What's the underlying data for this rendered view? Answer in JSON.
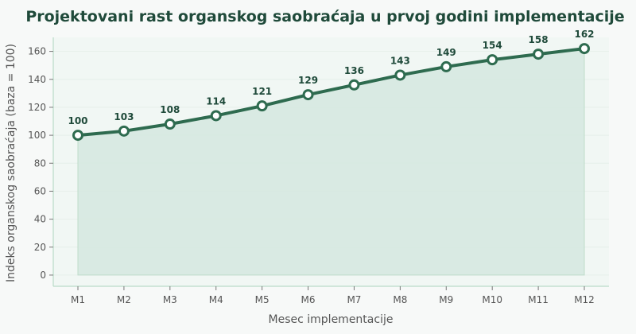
{
  "chart_data": {
    "type": "area",
    "title": "Projektovani rast organskog saobraćaja u prvoj godini implementacije",
    "xlabel": "Mesec implementacije",
    "ylabel": "Indeks organskog saobraćaja (baza = 100)",
    "categories": [
      "M1",
      "M2",
      "M3",
      "M4",
      "M5",
      "M6",
      "M7",
      "M8",
      "M9",
      "M10",
      "M11",
      "M12"
    ],
    "series": [
      {
        "values": [
          100,
          103,
          108,
          114,
          121,
          129,
          136,
          143,
          149,
          154,
          158,
          162
        ]
      }
    ],
    "data_labels": [
      "100",
      "103",
      "108",
      "114",
      "121",
      "129",
      "136",
      "143",
      "149",
      "154",
      "158",
      "162"
    ],
    "ylim": [
      -8,
      170
    ],
    "yticks": [
      0,
      20,
      40,
      60,
      80,
      100,
      120,
      140,
      160
    ],
    "ytick_labels": [
      "0",
      "20",
      "40",
      "60",
      "80",
      "100",
      "120",
      "140",
      "160"
    ],
    "grid": true,
    "colors": {
      "line": "#2e6b4f",
      "fill": "#d5e8df",
      "marker_fill": "#ffffff",
      "plot_bg": "#f1f7f4",
      "axis": "#b9dcc8",
      "grid": "#e6efea",
      "title": "#1f4a3a"
    }
  }
}
